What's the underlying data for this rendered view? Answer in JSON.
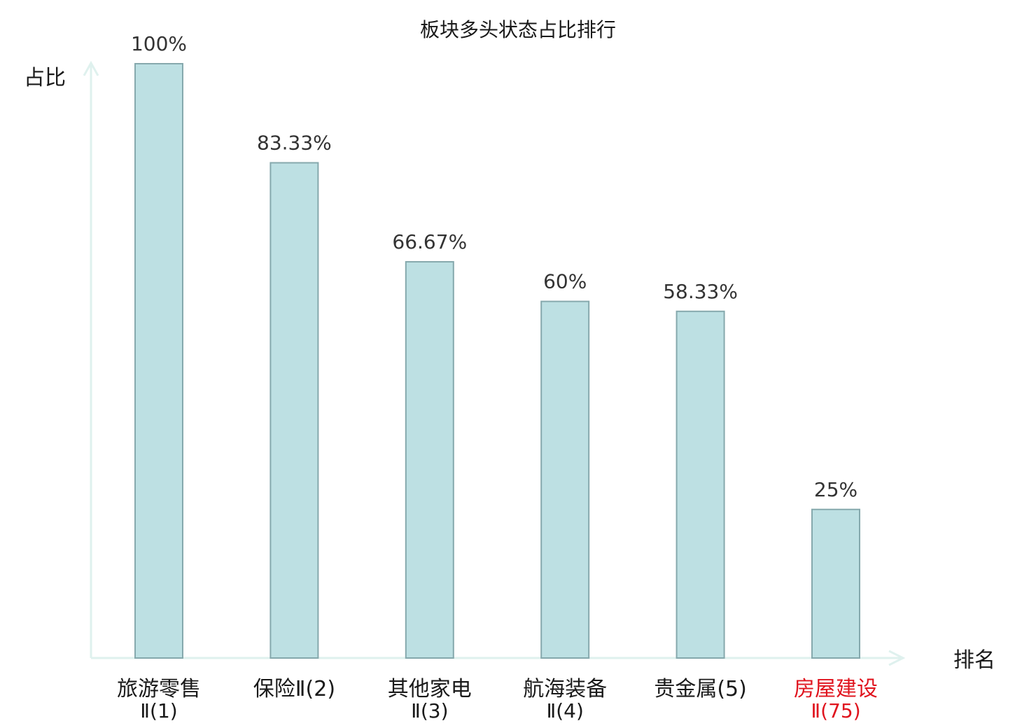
{
  "chart_data": {
    "type": "bar",
    "title": "板块多头状态占比排行",
    "ylabel": "占比",
    "xlabel": "排名",
    "ylim": [
      0,
      100
    ],
    "grid": false,
    "categories": [
      {
        "line1": "旅游零售",
        "line2": "Ⅱ(1)",
        "highlight": false
      },
      {
        "line1": "保险Ⅱ(2)",
        "line2": "",
        "highlight": false
      },
      {
        "line1": "其他家电",
        "line2": "Ⅱ(3)",
        "highlight": false
      },
      {
        "line1": "航海装备",
        "line2": "Ⅱ(4)",
        "highlight": false
      },
      {
        "line1": "贵金属(5)",
        "line2": "",
        "highlight": false
      },
      {
        "line1": "房屋建设",
        "line2": "Ⅱ(75)",
        "highlight": true
      }
    ],
    "values": [
      100,
      83.33,
      66.67,
      60,
      58.33,
      25
    ],
    "value_labels": [
      "100%",
      "83.33%",
      "66.67%",
      "60%",
      "58.33%",
      "25%"
    ],
    "colors": {
      "bar_fill": "#bde0e3",
      "bar_stroke": "#86a9ad",
      "axis": "#dff1ee",
      "text": "#1a1a1a",
      "highlight_text": "#e0141e"
    }
  }
}
